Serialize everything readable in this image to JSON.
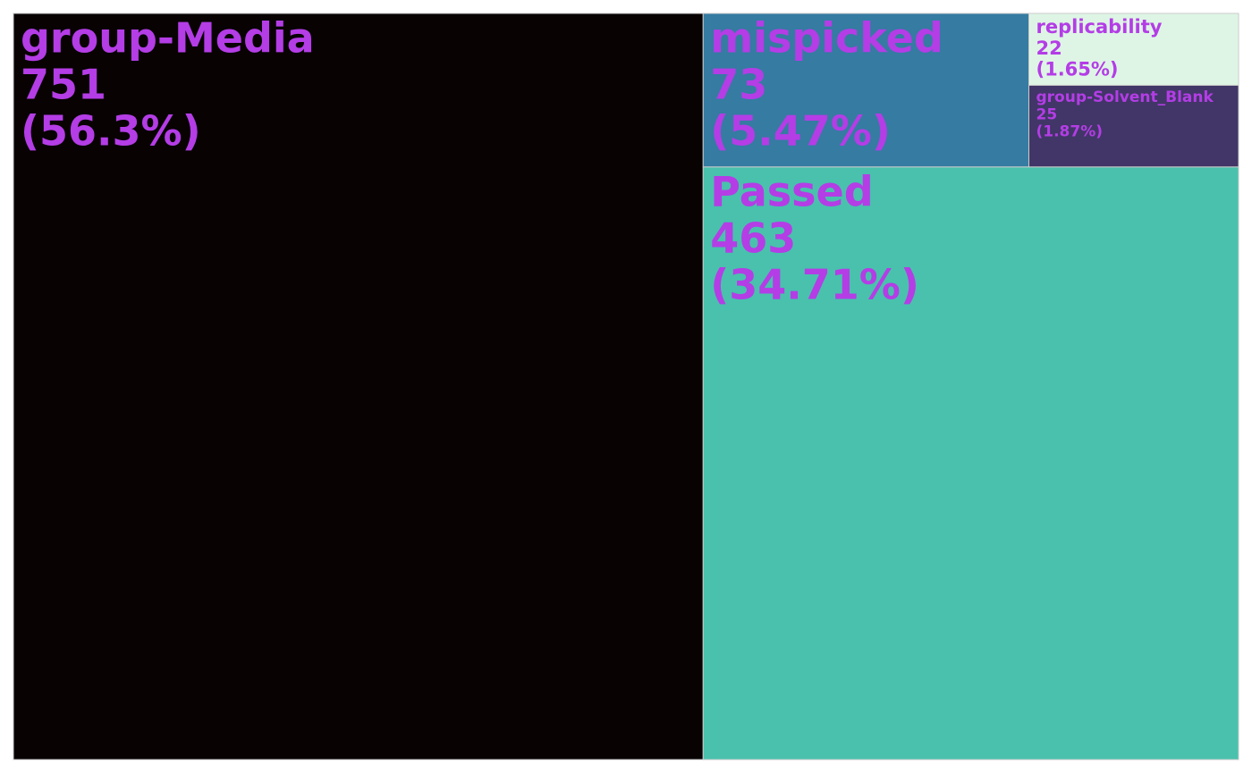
{
  "chart_data": {
    "type": "treemap",
    "label_color": "#b43de6",
    "border_color": "#cccccc",
    "tiles": [
      {
        "name": "group-Media",
        "value": 751,
        "percent": "(56.3%)",
        "color": "#080203"
      },
      {
        "name": "mispicked",
        "value": 73,
        "percent": "(5.47%)",
        "color": "#357ba2"
      },
      {
        "name": "replicability",
        "value": 22,
        "percent": "(1.65%)",
        "color": "#def5e5"
      },
      {
        "name": "group-Solvent_Blank",
        "value": 25,
        "percent": "(1.87%)",
        "color": "#413667"
      },
      {
        "name": "Passed",
        "value": 463,
        "percent": "(34.71%)",
        "color": "#49c1ad"
      }
    ]
  }
}
